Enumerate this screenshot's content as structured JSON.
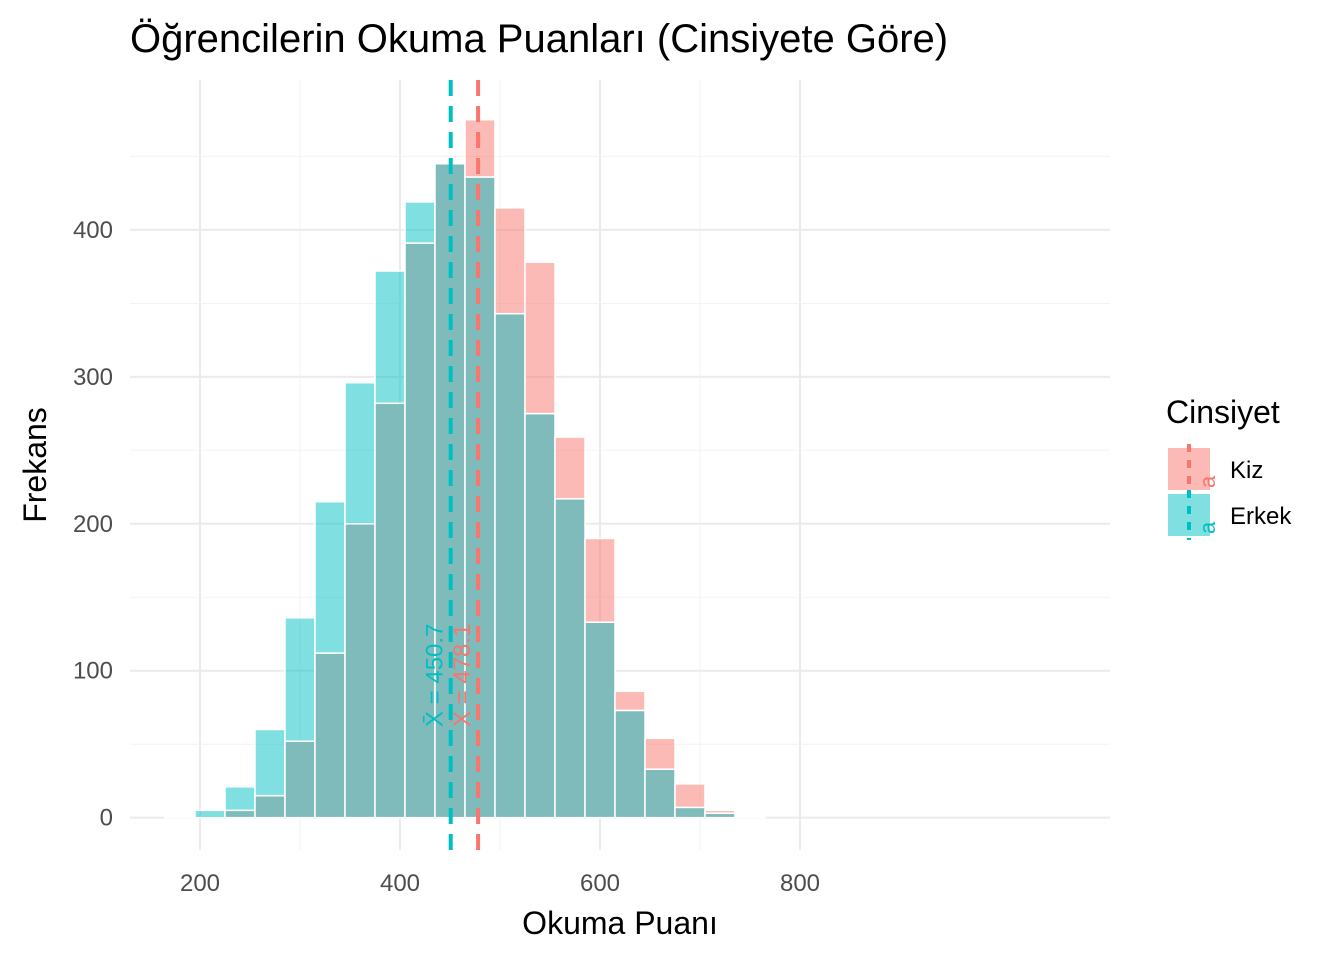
{
  "chart_data": {
    "type": "bar",
    "title": "Öğrencilerin Okuma Puanları (Cinsiyete Göre)",
    "xlabel": "Okuma Puanı",
    "ylabel": "Frekans",
    "xlim": [
      130,
      1110
    ],
    "ylim": [
      -22,
      502
    ],
    "x_ticks": [
      200,
      400,
      600,
      800
    ],
    "y_ticks": [
      0,
      100,
      200,
      300,
      400
    ],
    "bin_width": 30,
    "bin_centers": [
      180,
      210,
      240,
      270,
      300,
      330,
      360,
      390,
      420,
      450,
      480,
      510,
      540,
      570,
      600,
      630,
      660,
      690,
      720,
      750
    ],
    "legend": {
      "title": "Cinsiyet",
      "position": "right"
    },
    "series": [
      {
        "name": "Kiz",
        "color": "#F8766D",
        "values": [
          0,
          0,
          5,
          15,
          52,
          112,
          200,
          282,
          391,
          445,
          475,
          415,
          378,
          259,
          190,
          86,
          54,
          23,
          5,
          1
        ],
        "mean": 478.1,
        "mean_label": "X̄ = 478.1"
      },
      {
        "name": "Erkek",
        "color": "#00BFC4",
        "values": [
          1,
          5,
          21,
          60,
          136,
          215,
          296,
          372,
          419,
          445,
          436,
          343,
          275,
          217,
          133,
          73,
          33,
          7,
          3,
          1
        ],
        "mean": 450.7,
        "mean_label": "X̄ = 450.7"
      }
    ],
    "grid": true,
    "background": "#ffffff",
    "overlap_color": "#7FBBBB"
  }
}
